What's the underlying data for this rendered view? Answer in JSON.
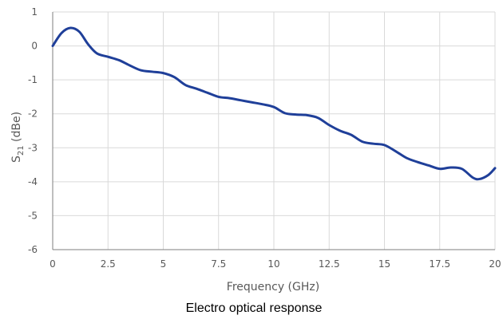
{
  "chart_data": {
    "type": "line",
    "caption": "Electro optical response",
    "xlabel": "Frequency (GHz)",
    "ylabel": {
      "base": "S",
      "sub": "21",
      "rest": " (dBe)"
    },
    "xlim": [
      0,
      20
    ],
    "ylim": [
      -6,
      1
    ],
    "xticks": [
      "0",
      "2.5",
      "5",
      "7.5",
      "10",
      "12.5",
      "15",
      "17.5",
      "20"
    ],
    "yticks": [
      "1",
      "0",
      "-1",
      "-2",
      "-3",
      "-4",
      "-5",
      "-6"
    ],
    "grid": true,
    "colors": {
      "line": "#1f3f99",
      "grid": "#d9d9d9",
      "axis": "#7f7f7f",
      "text": "#595959"
    },
    "series": [
      {
        "x": [
          0,
          0.4,
          0.8,
          1.2,
          1.6,
          2.0,
          2.5,
          3.0,
          3.5,
          4.0,
          4.5,
          5.0,
          5.5,
          6.0,
          6.5,
          7.0,
          7.5,
          8.0,
          8.5,
          9.0,
          9.5,
          10.0,
          10.5,
          11.0,
          11.5,
          12.0,
          12.5,
          13.0,
          13.5,
          14.0,
          14.5,
          15.0,
          15.5,
          16.0,
          16.5,
          17.0,
          17.5,
          18.0,
          18.5,
          19.0,
          19.3,
          19.7,
          20.0
        ],
        "y": [
          0.0,
          0.38,
          0.53,
          0.42,
          0.05,
          -0.22,
          -0.32,
          -0.42,
          -0.58,
          -0.72,
          -0.76,
          -0.8,
          -0.92,
          -1.15,
          -1.26,
          -1.38,
          -1.5,
          -1.54,
          -1.6,
          -1.66,
          -1.72,
          -1.8,
          -1.98,
          -2.02,
          -2.04,
          -2.12,
          -2.33,
          -2.5,
          -2.62,
          -2.82,
          -2.88,
          -2.92,
          -3.1,
          -3.3,
          -3.42,
          -3.52,
          -3.62,
          -3.58,
          -3.62,
          -3.88,
          -3.92,
          -3.8,
          -3.6
        ]
      }
    ]
  }
}
